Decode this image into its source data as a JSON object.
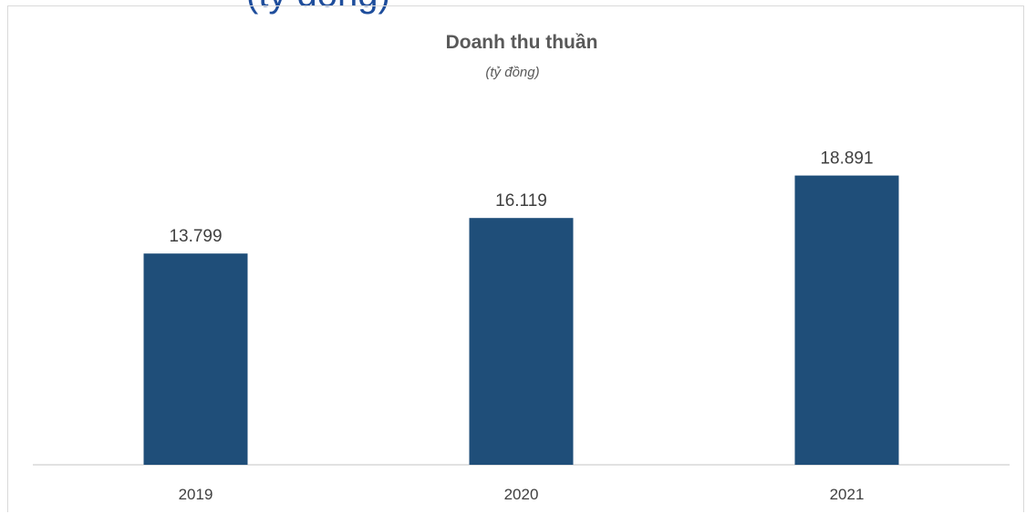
{
  "background_heading": "(tỷ đồng)",
  "chart_data": {
    "type": "bar",
    "title": "Doanh thu thuần",
    "subtitle": "(tỷ đồng)",
    "categories": [
      "2019",
      "2020",
      "2021"
    ],
    "values": [
      13799,
      16119,
      18891
    ],
    "value_labels": [
      "13.799",
      "16.119",
      "18.891"
    ],
    "xlabel": "",
    "ylabel": "",
    "ylim": [
      0,
      25000
    ],
    "grid": false,
    "legend": "none",
    "bar_color": "#1f4e79",
    "title_color": "#595959",
    "label_color": "#404040",
    "axis_color": "#d9d9d9"
  }
}
